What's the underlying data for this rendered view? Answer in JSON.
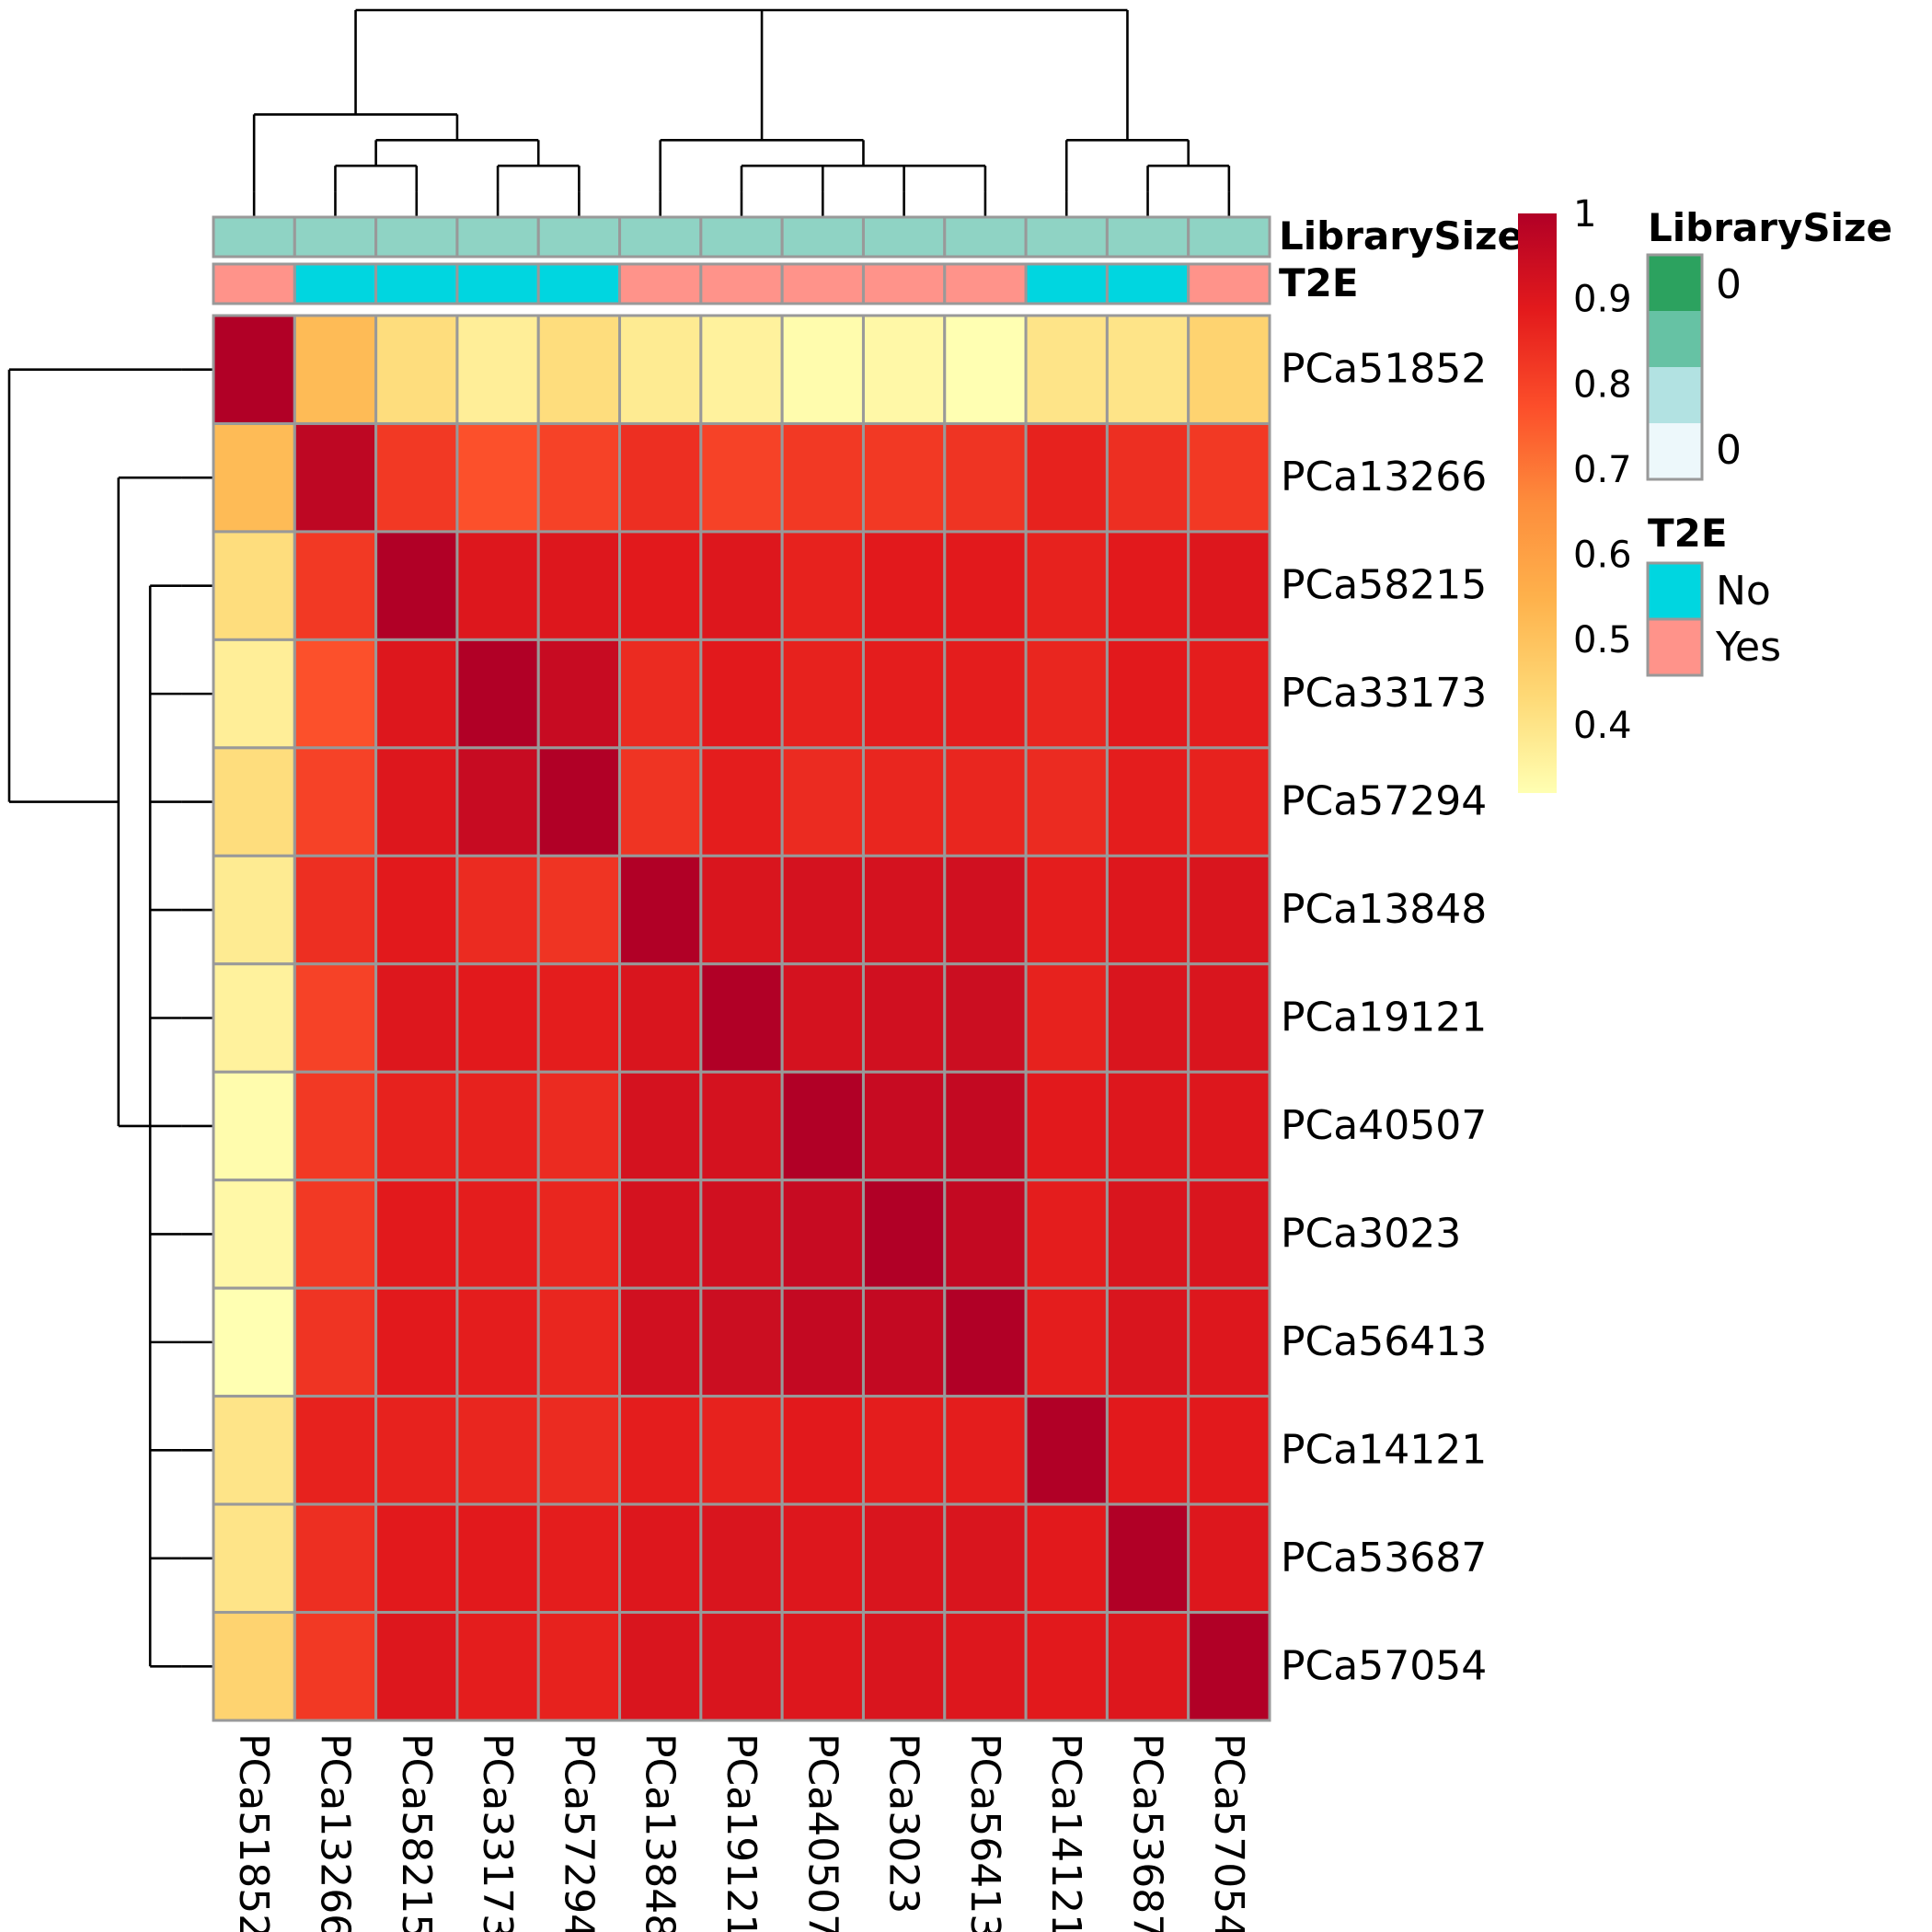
{
  "chart_data": {
    "type": "heatmap",
    "title": "",
    "samples": [
      "PCa51852",
      "PCa13266",
      "PCa58215",
      "PCa33173",
      "PCa57294",
      "PCa13848",
      "PCa19121",
      "PCa40507",
      "PCa3023",
      "PCa56413",
      "PCa14121",
      "PCa53687",
      "PCa57054"
    ],
    "values": [
      [
        1.0,
        0.52,
        0.42,
        0.37,
        0.42,
        0.38,
        0.36,
        0.33,
        0.34,
        0.32,
        0.4,
        0.4,
        0.45
      ],
      [
        0.52,
        0.97,
        0.82,
        0.77,
        0.8,
        0.84,
        0.8,
        0.82,
        0.82,
        0.83,
        0.87,
        0.84,
        0.82
      ],
      [
        0.42,
        0.82,
        1.0,
        0.9,
        0.9,
        0.89,
        0.9,
        0.87,
        0.89,
        0.89,
        0.87,
        0.89,
        0.9
      ],
      [
        0.37,
        0.77,
        0.9,
        1.0,
        0.95,
        0.85,
        0.89,
        0.87,
        0.88,
        0.88,
        0.86,
        0.89,
        0.88
      ],
      [
        0.42,
        0.8,
        0.9,
        0.95,
        1.0,
        0.83,
        0.88,
        0.85,
        0.86,
        0.86,
        0.85,
        0.88,
        0.87
      ],
      [
        0.38,
        0.84,
        0.89,
        0.85,
        0.83,
        1.0,
        0.91,
        0.92,
        0.92,
        0.93,
        0.88,
        0.9,
        0.91
      ],
      [
        0.36,
        0.8,
        0.9,
        0.89,
        0.88,
        0.91,
        1.0,
        0.92,
        0.93,
        0.94,
        0.87,
        0.91,
        0.91
      ],
      [
        0.33,
        0.82,
        0.87,
        0.87,
        0.85,
        0.92,
        0.92,
        1.0,
        0.95,
        0.96,
        0.89,
        0.9,
        0.9
      ],
      [
        0.34,
        0.82,
        0.89,
        0.88,
        0.86,
        0.92,
        0.93,
        0.95,
        1.0,
        0.96,
        0.88,
        0.91,
        0.91
      ],
      [
        0.32,
        0.83,
        0.89,
        0.88,
        0.86,
        0.93,
        0.94,
        0.96,
        0.96,
        1.0,
        0.88,
        0.91,
        0.9
      ],
      [
        0.4,
        0.87,
        0.87,
        0.86,
        0.85,
        0.88,
        0.87,
        0.89,
        0.88,
        0.88,
        1.0,
        0.89,
        0.89
      ],
      [
        0.4,
        0.84,
        0.89,
        0.89,
        0.88,
        0.9,
        0.91,
        0.9,
        0.91,
        0.91,
        0.89,
        1.0,
        0.9
      ],
      [
        0.45,
        0.82,
        0.9,
        0.88,
        0.87,
        0.91,
        0.91,
        0.9,
        0.91,
        0.9,
        0.89,
        0.9,
        1.0
      ]
    ],
    "color_scale": {
      "min": 0.32,
      "max": 1.0,
      "colors": [
        "#FFFFB2",
        "#FED976",
        "#FEB24C",
        "#FD8D3C",
        "#FC4E2A",
        "#E31A1C",
        "#B10026"
      ],
      "ticks": [
        {
          "value": 1.0,
          "label": "1"
        },
        {
          "value": 0.9,
          "label": "0.9"
        },
        {
          "value": 0.8,
          "label": "0.8"
        },
        {
          "value": 0.7,
          "label": "0.7"
        },
        {
          "value": 0.6,
          "label": "0.6"
        },
        {
          "value": 0.5,
          "label": "0.5"
        },
        {
          "value": 0.4,
          "label": "0.4"
        }
      ]
    },
    "annotations": [
      {
        "name": "LibrarySize",
        "values": [
          0,
          0,
          0,
          0,
          0,
          0,
          0,
          0,
          0,
          0,
          0,
          0,
          0
        ],
        "legend_labels": [
          "0",
          "0"
        ],
        "legend_colors": [
          "#2CA25F",
          "#66C2A4",
          "#B2E2E2",
          "#EDF8FB"
        ],
        "cell_color": "#8FD3C4"
      },
      {
        "name": "T2E",
        "values": [
          "Yes",
          "No",
          "No",
          "No",
          "No",
          "Yes",
          "Yes",
          "Yes",
          "Yes",
          "Yes",
          "No",
          "No",
          "Yes"
        ],
        "levels": [
          "No",
          "Yes"
        ],
        "colors": {
          "No": "#00D6E0",
          "Yes": "#FF938A"
        }
      }
    ],
    "col_tree": [
      [
        [
          0
        ],
        [
          [
            [
              1
            ],
            [
              2
            ]
          ],
          [
            [
              3
            ],
            [
              4
            ]
          ]
        ]
      ],
      [
        [
          5
        ],
        [
          [
            6
          ],
          [
            7
          ],
          [
            8
          ],
          [
            9
          ]
        ]
      ],
      [
        [
          10
        ],
        [
          [
            11
          ],
          [
            12
          ]
        ]
      ]
    ],
    "row_tree": [
      [
        0
      ],
      [
        [
          1
        ],
        [
          [
            2
          ],
          [
            3
          ]
        ]
      ]
    ],
    "grid": true,
    "legend_position": "right"
  }
}
